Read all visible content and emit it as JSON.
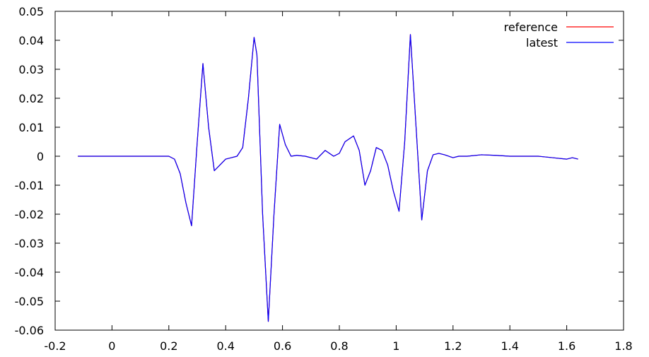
{
  "chart_data": {
    "type": "line",
    "title": "",
    "xlabel": "",
    "ylabel": "",
    "xlim": [
      -0.2,
      1.8
    ],
    "ylim": [
      -0.06,
      0.05
    ],
    "x_ticks": [
      -0.2,
      0,
      0.2,
      0.4,
      0.6,
      0.8,
      1,
      1.2,
      1.4,
      1.6,
      1.8
    ],
    "x_tick_labels": [
      "-0.2",
      "0",
      "0.2",
      "0.4",
      "0.6",
      "0.8",
      "1",
      "1.2",
      "1.4",
      "1.6",
      "1.8"
    ],
    "y_ticks": [
      0.05,
      0.04,
      0.03,
      0.02,
      0.01,
      0,
      -0.01,
      -0.02,
      -0.03,
      -0.04,
      -0.05,
      -0.06
    ],
    "y_tick_labels": [
      "0.05",
      "0.04",
      "0.03",
      "0.02",
      "0.01",
      "0",
      "-0.01",
      "-0.02",
      "-0.03",
      "-0.04",
      "-0.05",
      "-0.06"
    ],
    "grid": false,
    "legend_position": "top-right",
    "series": [
      {
        "name": "reference",
        "color": "#ff0000",
        "x": [
          -0.12,
          0.0,
          0.1,
          0.2,
          0.22,
          0.24,
          0.26,
          0.28,
          0.3,
          0.32,
          0.34,
          0.36,
          0.38,
          0.4,
          0.42,
          0.44,
          0.46,
          0.48,
          0.5,
          0.51,
          0.53,
          0.55,
          0.57,
          0.59,
          0.61,
          0.63,
          0.65,
          0.68,
          0.72,
          0.75,
          0.78,
          0.8,
          0.82,
          0.85,
          0.87,
          0.89,
          0.91,
          0.93,
          0.95,
          0.97,
          0.99,
          1.01,
          1.03,
          1.05,
          1.07,
          1.09,
          1.11,
          1.13,
          1.15,
          1.17,
          1.2,
          1.22,
          1.25,
          1.3,
          1.35,
          1.4,
          1.45,
          1.5,
          1.55,
          1.6,
          1.62,
          1.64
        ],
        "values": [
          0,
          0,
          0,
          0,
          -0.001,
          -0.006,
          -0.016,
          -0.024,
          0.005,
          0.032,
          0.01,
          -0.005,
          -0.003,
          -0.001,
          -0.0005,
          0.0,
          0.003,
          0.02,
          0.041,
          0.035,
          -0.02,
          -0.057,
          -0.02,
          0.011,
          0.004,
          0.0,
          0.0003,
          0.0,
          -0.001,
          0.002,
          0.0,
          0.001,
          0.005,
          0.007,
          0.002,
          -0.01,
          -0.005,
          0.003,
          0.002,
          -0.003,
          -0.012,
          -0.019,
          0.005,
          0.042,
          0.01,
          -0.022,
          -0.005,
          0.0005,
          0.001,
          0.0005,
          -0.0005,
          0.0,
          0.0,
          0.0005,
          0.0003,
          0.0,
          0.0,
          0.0,
          -0.0005,
          -0.001,
          -0.0005,
          -0.001
        ]
      },
      {
        "name": "latest",
        "color": "#0000ff",
        "x": [
          -0.12,
          0.0,
          0.1,
          0.2,
          0.22,
          0.24,
          0.26,
          0.28,
          0.3,
          0.32,
          0.34,
          0.36,
          0.38,
          0.4,
          0.42,
          0.44,
          0.46,
          0.48,
          0.5,
          0.51,
          0.53,
          0.55,
          0.57,
          0.59,
          0.61,
          0.63,
          0.65,
          0.68,
          0.72,
          0.75,
          0.78,
          0.8,
          0.82,
          0.85,
          0.87,
          0.89,
          0.91,
          0.93,
          0.95,
          0.97,
          0.99,
          1.01,
          1.03,
          1.05,
          1.07,
          1.09,
          1.11,
          1.13,
          1.15,
          1.17,
          1.2,
          1.22,
          1.25,
          1.3,
          1.35,
          1.4,
          1.45,
          1.5,
          1.55,
          1.6,
          1.62,
          1.64
        ],
        "values": [
          0,
          0,
          0,
          0,
          -0.001,
          -0.006,
          -0.016,
          -0.024,
          0.005,
          0.032,
          0.01,
          -0.005,
          -0.003,
          -0.001,
          -0.0005,
          0.0,
          0.003,
          0.02,
          0.041,
          0.035,
          -0.02,
          -0.057,
          -0.02,
          0.011,
          0.004,
          0.0,
          0.0003,
          0.0,
          -0.001,
          0.002,
          0.0,
          0.001,
          0.005,
          0.007,
          0.002,
          -0.01,
          -0.005,
          0.003,
          0.002,
          -0.003,
          -0.012,
          -0.019,
          0.005,
          0.042,
          0.01,
          -0.022,
          -0.005,
          0.0005,
          0.001,
          0.0005,
          -0.0005,
          0.0,
          0.0,
          0.0005,
          0.0003,
          0.0,
          0.0,
          0.0,
          -0.0005,
          -0.001,
          -0.0005,
          -0.001
        ]
      }
    ]
  }
}
